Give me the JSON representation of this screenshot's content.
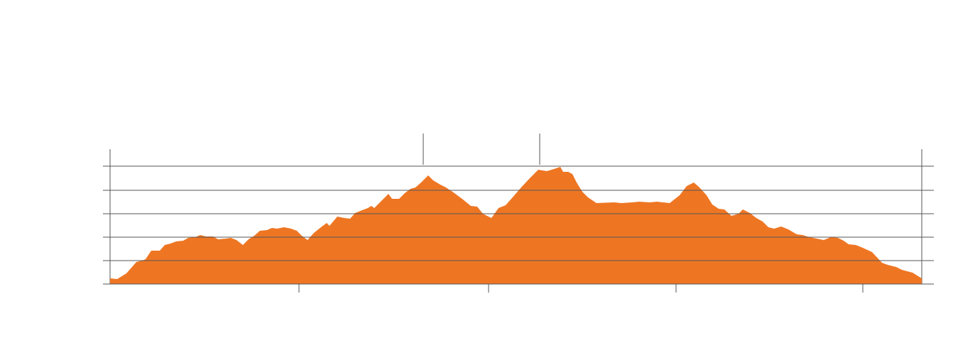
{
  "chart_data": {
    "type": "area",
    "color": "#ee7623",
    "grid": true,
    "x": [
      0,
      10,
      23,
      37,
      45,
      50,
      58,
      70,
      77,
      85,
      93,
      103,
      110,
      120,
      127,
      135,
      145,
      152,
      163,
      170,
      178,
      187,
      195,
      203,
      211,
      221,
      228,
      235,
      245,
      255,
      263,
      270,
      278,
      287,
      297,
      305,
      309,
      320,
      330,
      338,
      345,
      355,
      363,
      368,
      372,
      378,
      385,
      392,
      397,
      403,
      407,
      415,
      423,
      430,
      438,
      448,
      455,
      465,
      473,
      485,
      497,
      508,
      517,
      525,
      537,
      547,
      557,
      565,
      578,
      590,
      603,
      615,
      625,
      634,
      638,
      645,
      651,
      657,
      665,
      673,
      685,
      710,
      720,
      735,
      745,
      760,
      770,
      788,
      802,
      812,
      822,
      830,
      840,
      848,
      857,
      865,
      875,
      885,
      891,
      901,
      910,
      919,
      927,
      935,
      945,
      955,
      967,
      975,
      985,
      995,
      1005,
      1015,
      1025,
      1033,
      1040,
      1050,
      1060,
      1073,
      1087,
      1095,
      1107,
      1115,
      1130,
      1143
    ],
    "values": [
      8,
      7,
      15,
      31,
      33,
      35,
      47,
      47,
      55,
      57,
      60,
      61,
      65,
      66,
      69,
      67,
      67,
      63,
      64,
      65,
      62,
      55,
      63,
      68,
      75,
      76,
      79,
      78,
      80,
      78,
      75,
      68,
      62,
      72,
      80,
      86,
      82,
      95,
      93,
      92,
      100,
      104,
      107,
      110,
      107,
      113,
      120,
      127,
      120,
      120,
      120,
      128,
      134,
      136,
      143,
      153,
      146,
      140,
      136,
      128,
      119,
      110,
      109,
      99,
      93,
      107,
      111,
      120,
      135,
      148,
      161,
      159,
      162,
      165,
      158,
      158,
      155,
      143,
      130,
      122,
      114,
      115,
      114,
      115,
      116,
      115,
      116,
      114,
      125,
      138,
      143,
      136,
      125,
      112,
      106,
      105,
      96,
      99,
      105,
      100,
      93,
      88,
      80,
      78,
      81,
      77,
      70,
      69,
      66,
      64,
      62,
      66,
      65,
      61,
      56,
      55,
      51,
      45,
      30,
      27,
      24,
      20,
      16,
      8
    ],
    "xlim": [
      0,
      1143
    ],
    "xticks": [
      266,
      533,
      797,
      1060
    ],
    "ylim": [
      0,
      190
    ],
    "yticks": [
      0,
      33,
      66,
      99,
      132,
      166
    ],
    "vlines": [
      441,
      605
    ]
  }
}
